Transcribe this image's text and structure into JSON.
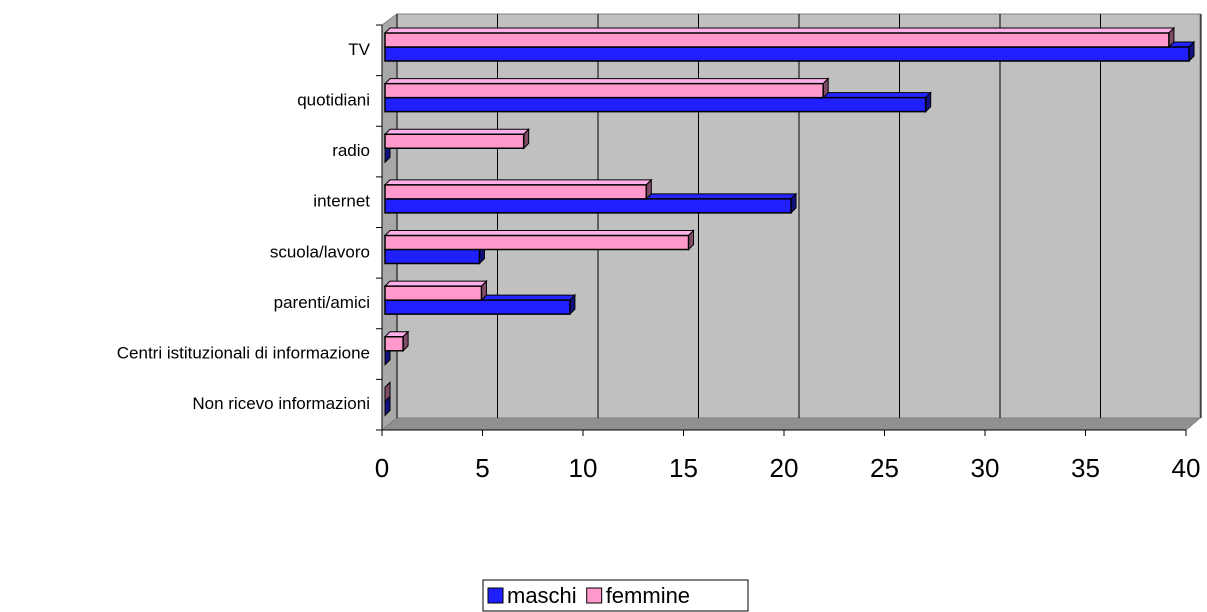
{
  "chart_data": {
    "type": "bar3d_horizontal",
    "categories": [
      "TV",
      "quotidiani",
      "radio",
      "internet",
      "scuola/lavoro",
      "parenti/amici",
      "Centri istituzionali di informazione",
      "Non ricevo informazioni"
    ],
    "series": [
      {
        "name": "maschi",
        "color": "#1f1fff",
        "values": [
          40,
          26.9,
          0,
          20.2,
          4.7,
          9.2,
          0,
          0
        ]
      },
      {
        "name": "femmine",
        "color": "#ff99cc",
        "values": [
          39,
          21.8,
          6.9,
          13,
          15.1,
          4.8,
          0.9,
          0
        ]
      }
    ],
    "xlim": [
      0,
      40
    ],
    "xticks": [
      0,
      5,
      10,
      15,
      20,
      25,
      30,
      35,
      40
    ],
    "grid": true,
    "legend": "bottom"
  }
}
